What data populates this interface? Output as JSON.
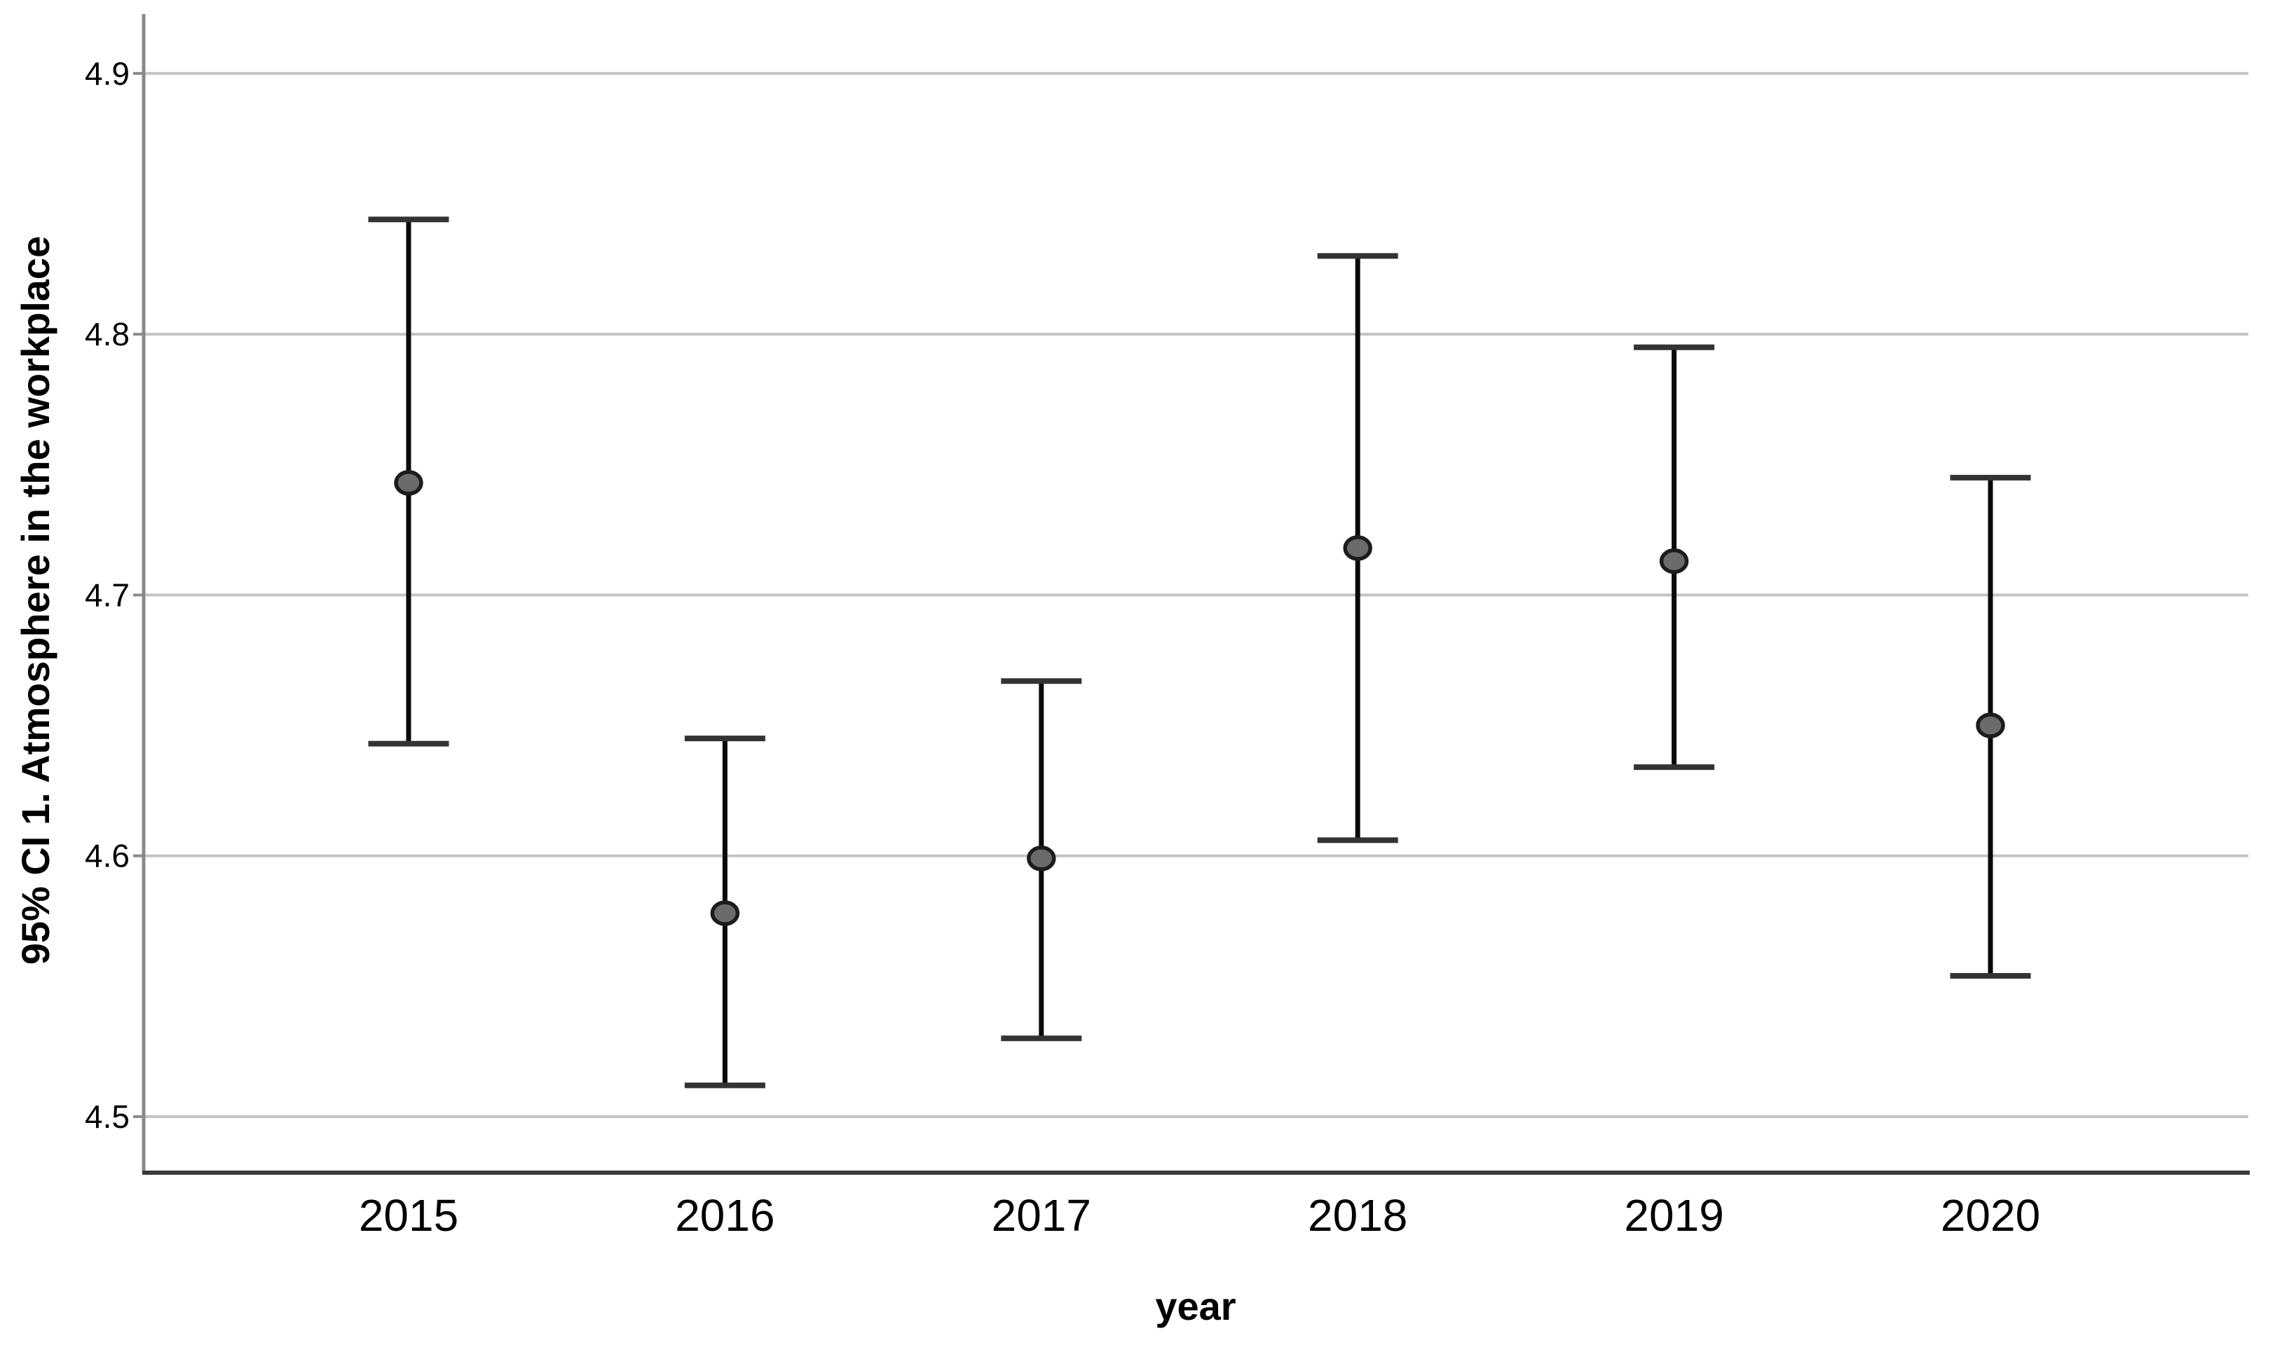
{
  "chart_data": {
    "type": "scatter",
    "subtype": "mean-with-95ci-error-bars",
    "title": "",
    "xlabel": "year",
    "ylabel": "95% CI 1. Atmosphere in the workplace",
    "categories": [
      "2015",
      "2016",
      "2017",
      "2018",
      "2019",
      "2020"
    ],
    "series": [
      {
        "name": "mean",
        "values": [
          4.743,
          4.578,
          4.599,
          4.718,
          4.713,
          4.65
        ]
      },
      {
        "name": "ci_lower",
        "values": [
          4.643,
          4.512,
          4.53,
          4.606,
          4.634,
          4.554
        ]
      },
      {
        "name": "ci_upper",
        "values": [
          4.844,
          4.645,
          4.667,
          4.83,
          4.795,
          4.745
        ]
      }
    ],
    "ylim": [
      4.478,
      4.923
    ],
    "yticks": [
      "4.5",
      "4.6",
      "4.7",
      "4.8",
      "4.9"
    ],
    "grid": "horizontal",
    "legend": "none",
    "colors": {
      "gridline": "#c3c3c3",
      "y_axis_line": "#8a8a8a",
      "x_axis_line": "#3b3b3b",
      "error_bar_line": "#0a0a0a",
      "error_bar_cap": "#333333",
      "marker_fill": "#6b6b6b",
      "marker_stroke": "#1c1c1c",
      "text": "#000000"
    }
  }
}
